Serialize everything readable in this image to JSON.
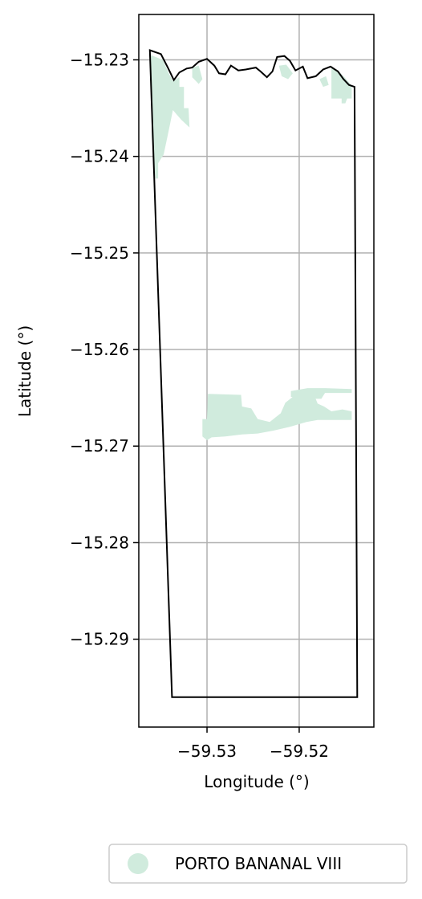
{
  "chart_data": {
    "type": "map",
    "xlabel": "Longitude (°)",
    "ylabel": "Latitude (°)",
    "x_ticks": [
      {
        "value": -59.53,
        "label": "−59.53"
      },
      {
        "value": -59.52,
        "label": "−59.52"
      }
    ],
    "y_ticks": [
      {
        "value": -15.23,
        "label": "−15.23"
      },
      {
        "value": -15.24,
        "label": "−15.24"
      },
      {
        "value": -15.25,
        "label": "−15.25"
      },
      {
        "value": -15.26,
        "label": "−15.26"
      },
      {
        "value": -15.27,
        "label": "−15.27"
      },
      {
        "value": -15.28,
        "label": "−15.28"
      },
      {
        "value": -15.29,
        "label": "−15.29"
      }
    ],
    "xlim": [
      -59.5374,
      -59.5119
    ],
    "ylim": [
      -15.2991,
      -15.2253
    ],
    "grid": true,
    "legend": {
      "placement": "bottom-right",
      "entries": [
        {
          "label": "PORTO BANANAL VIII",
          "color": "#d0ebdd"
        }
      ]
    },
    "colors": {
      "boundary": "#000000",
      "area_fill": "#d0ebdd",
      "grid": "#b0b0b0"
    },
    "boundary": [
      [
        -59.5362,
        -15.229
      ],
      [
        -59.535,
        -15.2294
      ],
      [
        -59.5342,
        -15.2309
      ],
      [
        -59.5336,
        -15.2321
      ],
      [
        -59.533,
        -15.2313
      ],
      [
        -59.5322,
        -15.2309
      ],
      [
        -59.5316,
        -15.2308
      ],
      [
        -59.5309,
        -15.2302
      ],
      [
        -59.53,
        -15.2299
      ],
      [
        -59.5292,
        -15.2306
      ],
      [
        -59.5287,
        -15.2314
      ],
      [
        -59.528,
        -15.2315
      ],
      [
        -59.5274,
        -15.2306
      ],
      [
        -59.5266,
        -15.2311
      ],
      [
        -59.5258,
        -15.231
      ],
      [
        -59.5247,
        -15.2308
      ],
      [
        -59.5242,
        -15.2312
      ],
      [
        -59.5235,
        -15.2318
      ],
      [
        -59.5229,
        -15.2312
      ],
      [
        -59.5224,
        -15.2297
      ],
      [
        -59.5216,
        -15.2296
      ],
      [
        -59.521,
        -15.2301
      ],
      [
        -59.5204,
        -15.2311
      ],
      [
        -59.5196,
        -15.2307
      ],
      [
        -59.5191,
        -15.2319
      ],
      [
        -59.5182,
        -15.2317
      ],
      [
        -59.5174,
        -15.231
      ],
      [
        -59.5166,
        -15.2307
      ],
      [
        -59.5158,
        -15.2312
      ],
      [
        -59.5152,
        -15.232
      ],
      [
        -59.5146,
        -15.2326
      ],
      [
        -59.514,
        -15.2328
      ],
      [
        -59.5137,
        -15.296
      ],
      [
        -59.5338,
        -15.296
      ],
      [
        -59.5362,
        -15.229
      ]
    ],
    "areas": [
      [
        [
          -59.5361,
          -15.2295
        ],
        [
          -59.5348,
          -15.23
        ],
        [
          -59.5342,
          -15.2313
        ],
        [
          -59.5337,
          -15.2322
        ],
        [
          -59.533,
          -15.2318
        ],
        [
          -59.533,
          -15.2328
        ],
        [
          -59.5325,
          -15.2328
        ],
        [
          -59.5325,
          -15.235
        ],
        [
          -59.532,
          -15.235
        ],
        [
          -59.5319,
          -15.237
        ],
        [
          -59.5328,
          -15.2362
        ],
        [
          -59.5337,
          -15.2352
        ],
        [
          -59.534,
          -15.2366
        ],
        [
          -59.5343,
          -15.238
        ],
        [
          -59.5347,
          -15.2398
        ],
        [
          -59.5353,
          -15.2407
        ],
        [
          -59.5353,
          -15.2423
        ],
        [
          -59.5356,
          -15.2423
        ],
        [
          -59.536,
          -15.238
        ],
        [
          -59.5361,
          -15.2295
        ]
      ],
      [
        [
          -59.5316,
          -15.2308
        ],
        [
          -59.5309,
          -15.2306
        ],
        [
          -59.5305,
          -15.232
        ],
        [
          -59.5309,
          -15.2325
        ],
        [
          -59.5316,
          -15.2318
        ],
        [
          -59.5316,
          -15.2308
        ]
      ],
      [
        [
          -59.5222,
          -15.2306
        ],
        [
          -59.5214,
          -15.2305
        ],
        [
          -59.5207,
          -15.2314
        ],
        [
          -59.5212,
          -15.232
        ],
        [
          -59.5219,
          -15.2317
        ],
        [
          -59.5222,
          -15.2306
        ]
      ],
      [
        [
          -59.5178,
          -15.232
        ],
        [
          -59.5171,
          -15.2317
        ],
        [
          -59.5168,
          -15.2326
        ],
        [
          -59.5174,
          -15.2328
        ],
        [
          -59.5178,
          -15.232
        ]
      ],
      [
        [
          -59.5165,
          -15.2307
        ],
        [
          -59.5157,
          -15.2312
        ],
        [
          -59.515,
          -15.2319
        ],
        [
          -59.5143,
          -15.2327
        ],
        [
          -59.5143,
          -15.234
        ],
        [
          -59.5148,
          -15.234
        ],
        [
          -59.515,
          -15.2345
        ],
        [
          -59.5154,
          -15.2345
        ],
        [
          -59.5154,
          -15.234
        ],
        [
          -59.5165,
          -15.234
        ],
        [
          -59.5165,
          -15.2307
        ]
      ],
      [
        [
          -59.5299,
          -15.2646
        ],
        [
          -59.5263,
          -15.2647
        ],
        [
          -59.5262,
          -15.2659
        ],
        [
          -59.5252,
          -15.2661
        ],
        [
          -59.5245,
          -15.2672
        ],
        [
          -59.5232,
          -15.2675
        ],
        [
          -59.522,
          -15.2666
        ],
        [
          -59.5215,
          -15.2655
        ],
        [
          -59.5207,
          -15.2649
        ],
        [
          -59.5195,
          -15.2648
        ],
        [
          -59.5183,
          -15.2649
        ],
        [
          -59.518,
          -15.2656
        ],
        [
          -59.5173,
          -15.2659
        ],
        [
          -59.5165,
          -15.2664
        ],
        [
          -59.5153,
          -15.2662
        ],
        [
          -59.5143,
          -15.2664
        ],
        [
          -59.5143,
          -15.2673
        ],
        [
          -59.516,
          -15.2673
        ],
        [
          -59.518,
          -15.2673
        ],
        [
          -59.5192,
          -15.2675
        ],
        [
          -59.521,
          -15.268
        ],
        [
          -59.5228,
          -15.2684
        ],
        [
          -59.5245,
          -15.2687
        ],
        [
          -59.5262,
          -15.2688
        ],
        [
          -59.528,
          -15.269
        ],
        [
          -59.5295,
          -15.2691
        ],
        [
          -59.53,
          -15.2694
        ],
        [
          -59.5305,
          -15.269
        ],
        [
          -59.5305,
          -15.2672
        ],
        [
          -59.53,
          -15.2672
        ],
        [
          -59.5299,
          -15.2646
        ]
      ],
      [
        [
          -59.5209,
          -15.2643
        ],
        [
          -59.5191,
          -15.264
        ],
        [
          -59.5172,
          -15.264
        ],
        [
          -59.5143,
          -15.2641
        ],
        [
          -59.5143,
          -15.2645
        ],
        [
          -59.5172,
          -15.2645
        ],
        [
          -59.5176,
          -15.2651
        ],
        [
          -59.5192,
          -15.2651
        ],
        [
          -59.5209,
          -15.2649
        ],
        [
          -59.5209,
          -15.2643
        ]
      ]
    ]
  }
}
